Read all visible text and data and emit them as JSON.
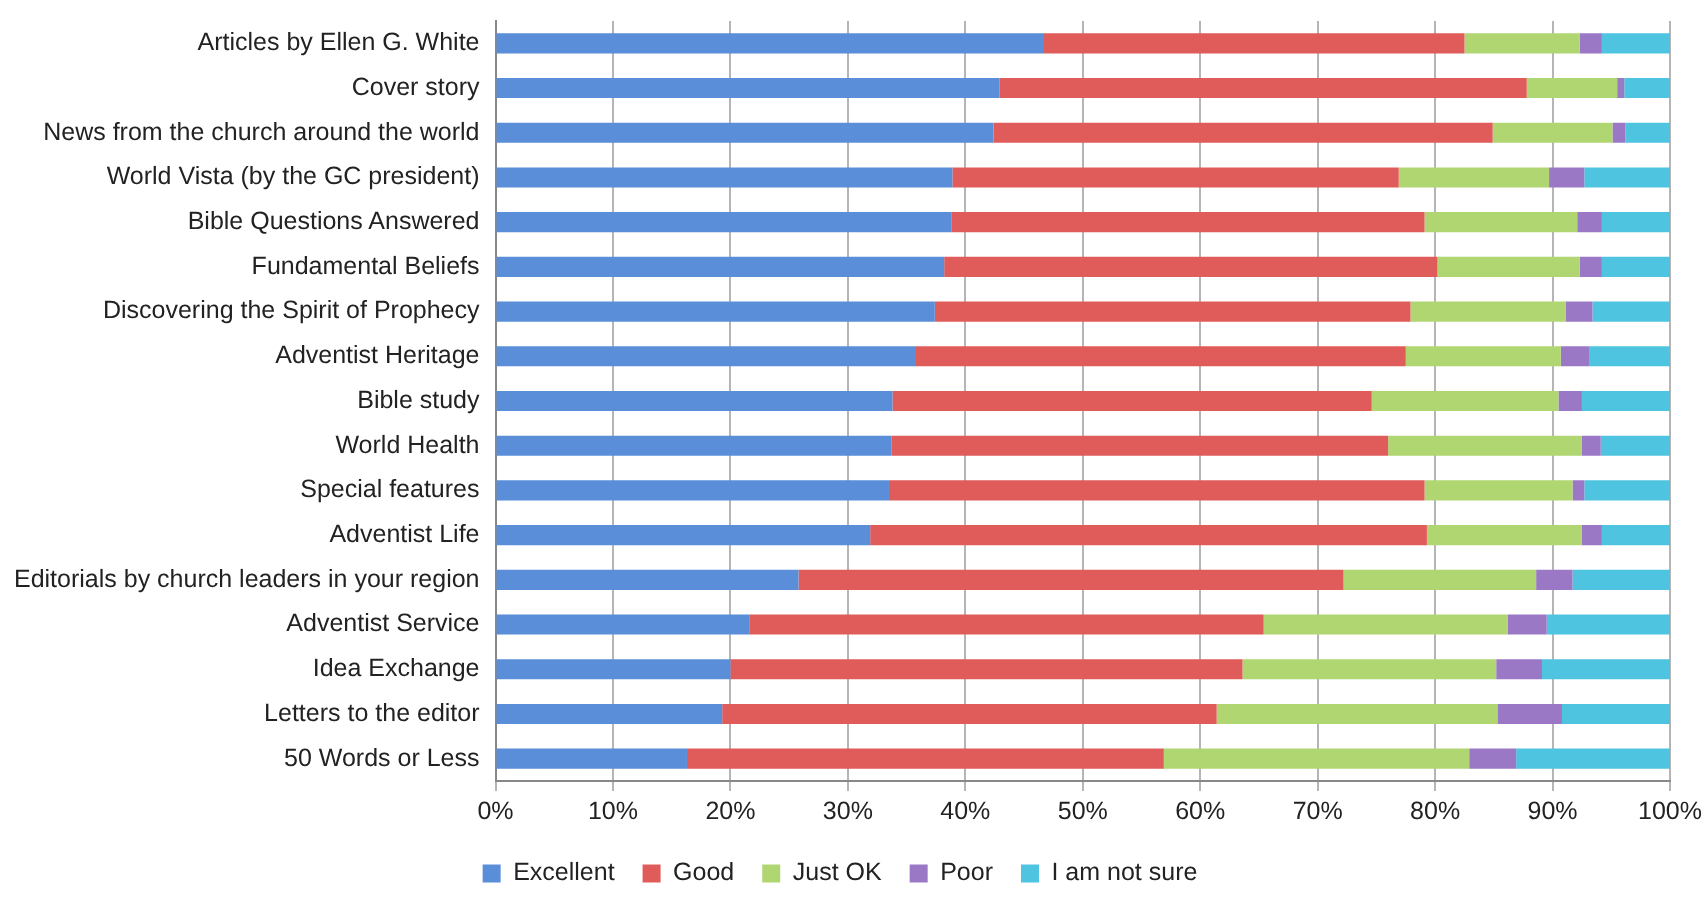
{
  "chart_data": {
    "type": "bar",
    "orientation": "horizontal",
    "stacked": true,
    "categories": [
      "Articles by Ellen G. White",
      "Cover story",
      "News from the church around the world",
      "World Vista (by the GC president)",
      "Bible Questions Answered",
      "Fundamental Beliefs",
      "Discovering the Spirit of Prophecy",
      "Adventist Heritage",
      "Bible study",
      "World Health",
      "Special features",
      "Adventist Life",
      "Editorials by church leaders in your region",
      "Adventist Service",
      "Idea Exchange",
      "Letters to the editor",
      "50 Words or Less"
    ],
    "series": [
      {
        "name": "Excellent",
        "color": "#5b8ed8",
        "values": [
          46.7,
          42.9,
          42.4,
          38.9,
          38.8,
          38.2,
          37.4,
          35.8,
          33.8,
          33.7,
          33.5,
          31.9,
          25.8,
          21.6,
          20.0,
          19.3,
          16.3
        ]
      },
      {
        "name": "Good",
        "color": "#e05c5a",
        "values": [
          35.8,
          44.9,
          42.5,
          38.0,
          40.3,
          42.0,
          40.5,
          41.7,
          40.8,
          42.3,
          45.6,
          47.4,
          46.4,
          43.8,
          43.6,
          42.1,
          40.6
        ]
      },
      {
        "name": "Just OK",
        "color": "#b0d672",
        "values": [
          9.8,
          7.7,
          10.2,
          12.8,
          13.0,
          12.1,
          13.2,
          13.2,
          15.9,
          16.5,
          12.6,
          13.2,
          16.4,
          20.8,
          21.6,
          23.9,
          26.0
        ]
      },
      {
        "name": "Poor",
        "color": "#9a78c6",
        "values": [
          1.9,
          0.6,
          1.1,
          3.0,
          2.1,
          1.9,
          2.3,
          2.4,
          2.0,
          1.6,
          1.0,
          1.7,
          3.1,
          3.3,
          3.9,
          5.5,
          4.0
        ]
      },
      {
        "name": "I am not sure",
        "color": "#4fc4e0",
        "values": [
          5.8,
          3.9,
          3.8,
          7.3,
          5.8,
          5.8,
          6.6,
          6.9,
          7.5,
          5.9,
          7.3,
          5.8,
          8.3,
          10.5,
          10.9,
          9.2,
          13.1
        ]
      }
    ],
    "xlim": [
      0,
      100
    ],
    "xticks": [
      {
        "value": 0,
        "label": "0%"
      },
      {
        "value": 10,
        "label": "10%"
      },
      {
        "value": 20,
        "label": "20%"
      },
      {
        "value": 30,
        "label": "30%"
      },
      {
        "value": 40,
        "label": "40%"
      },
      {
        "value": 50,
        "label": "50%"
      },
      {
        "value": 60,
        "label": "60%"
      },
      {
        "value": 70,
        "label": "70%"
      },
      {
        "value": 80,
        "label": "80%"
      },
      {
        "value": 90,
        "label": "90%"
      },
      {
        "value": 100,
        "label": "100%"
      }
    ],
    "grid": "x",
    "legend": "bottom"
  }
}
